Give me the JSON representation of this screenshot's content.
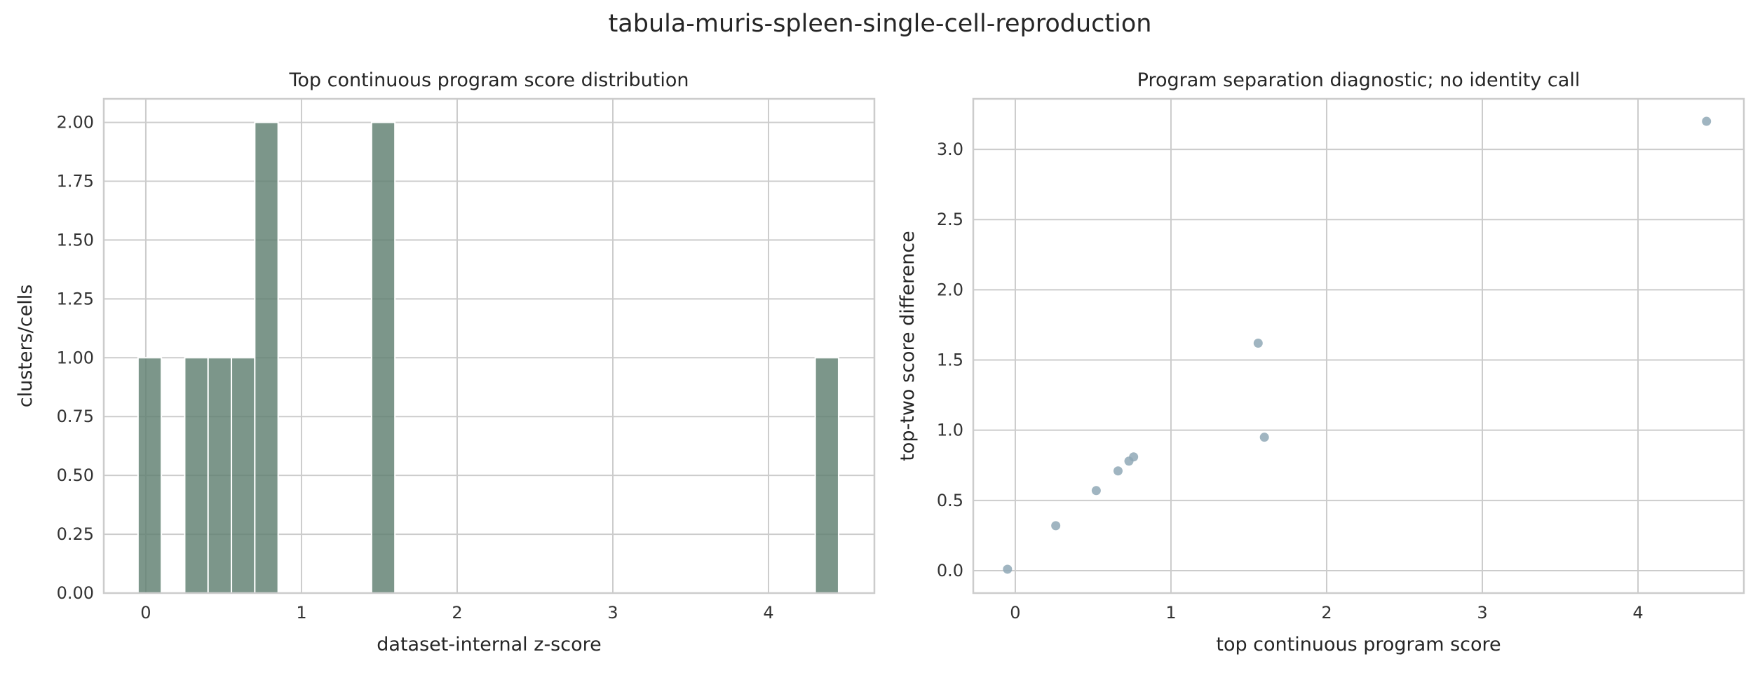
{
  "figure": {
    "suptitle": "tabula-muris-spleen-single-cell-reproduction"
  },
  "chart_data": [
    {
      "type": "bar",
      "title": "Top continuous program score distribution",
      "xlabel": "dataset-internal z-score",
      "ylabel": "clusters/cells",
      "xlim": [
        -0.27,
        4.68
      ],
      "ylim": [
        0,
        2.1
      ],
      "xticks": [
        0,
        1,
        2,
        3,
        4
      ],
      "yticks": [
        0.0,
        0.25,
        0.5,
        0.75,
        1.0,
        1.25,
        1.5,
        1.75,
        2.0
      ],
      "ytick_labels": [
        "0.00",
        "0.25",
        "0.50",
        "0.75",
        "1.00",
        "1.25",
        "1.50",
        "1.75",
        "2.00"
      ],
      "grid": true,
      "bar_color": "#5f7f70",
      "bins": [
        {
          "x0": -0.05,
          "x1": 0.1,
          "count": 1
        },
        {
          "x0": 0.25,
          "x1": 0.4,
          "count": 1
        },
        {
          "x0": 0.4,
          "x1": 0.55,
          "count": 1
        },
        {
          "x0": 0.55,
          "x1": 0.7,
          "count": 1
        },
        {
          "x0": 0.7,
          "x1": 0.85,
          "count": 2
        },
        {
          "x0": 1.45,
          "x1": 1.6,
          "count": 2
        },
        {
          "x0": 4.3,
          "x1": 4.45,
          "count": 1
        }
      ]
    },
    {
      "type": "scatter",
      "title": "Program separation diagnostic; no identity call",
      "xlabel": "top continuous program score",
      "ylabel": "top-two score difference",
      "xlim": [
        -0.27,
        4.68
      ],
      "ylim": [
        -0.16,
        3.36
      ],
      "xticks": [
        0,
        1,
        2,
        3,
        4
      ],
      "yticks": [
        0.0,
        0.5,
        1.0,
        1.5,
        2.0,
        2.5,
        3.0
      ],
      "ytick_labels": [
        "0.0",
        "0.5",
        "1.0",
        "1.5",
        "2.0",
        "2.5",
        "3.0"
      ],
      "grid": true,
      "point_color": "#8fa8b6",
      "points": [
        {
          "x": -0.05,
          "y": 0.01
        },
        {
          "x": 0.26,
          "y": 0.32
        },
        {
          "x": 0.52,
          "y": 0.57
        },
        {
          "x": 0.66,
          "y": 0.71
        },
        {
          "x": 0.73,
          "y": 0.78
        },
        {
          "x": 0.76,
          "y": 0.81
        },
        {
          "x": 1.56,
          "y": 1.62
        },
        {
          "x": 1.6,
          "y": 0.95
        },
        {
          "x": 4.44,
          "y": 3.2
        }
      ]
    }
  ]
}
